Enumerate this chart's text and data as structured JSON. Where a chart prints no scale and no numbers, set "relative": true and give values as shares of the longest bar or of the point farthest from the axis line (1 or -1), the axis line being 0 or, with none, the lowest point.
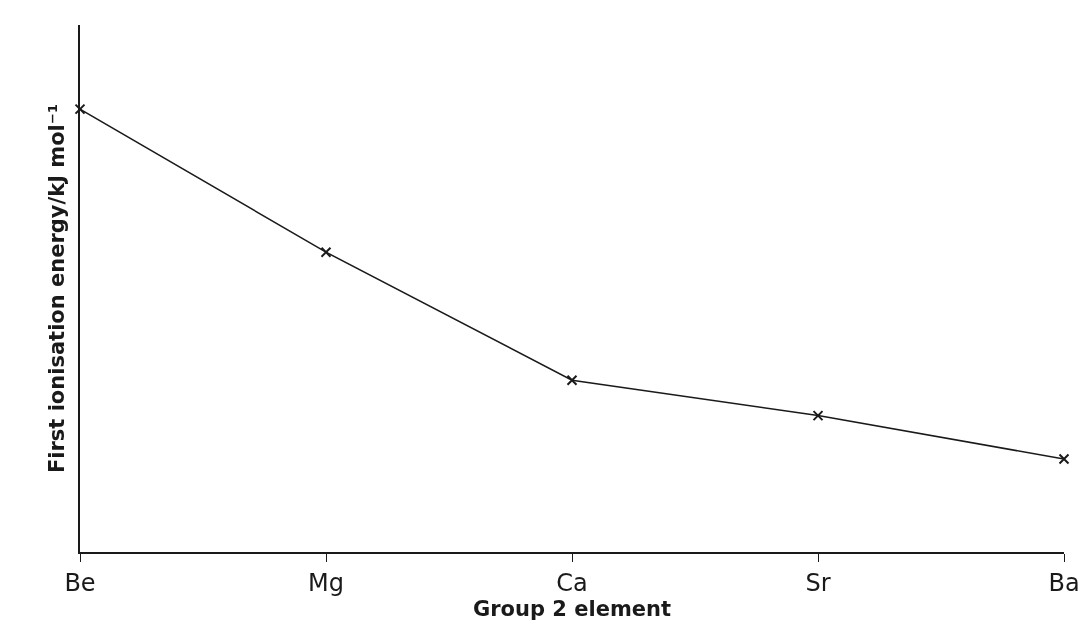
{
  "chart_data": {
    "type": "line",
    "relative": true,
    "xlabel": "Group 2 element",
    "ylabel": "First ionisation energy/kJ mol⁻¹",
    "categories": [
      "Be",
      "Mg",
      "Ca",
      "Sr",
      "Ba"
    ],
    "series": [
      {
        "color": "#1a1a1a",
        "values": [
          1,
          0.677,
          0.388,
          0.308,
          0.21
        ]
      }
    ],
    "marker": "cross",
    "line_style": "solid"
  }
}
